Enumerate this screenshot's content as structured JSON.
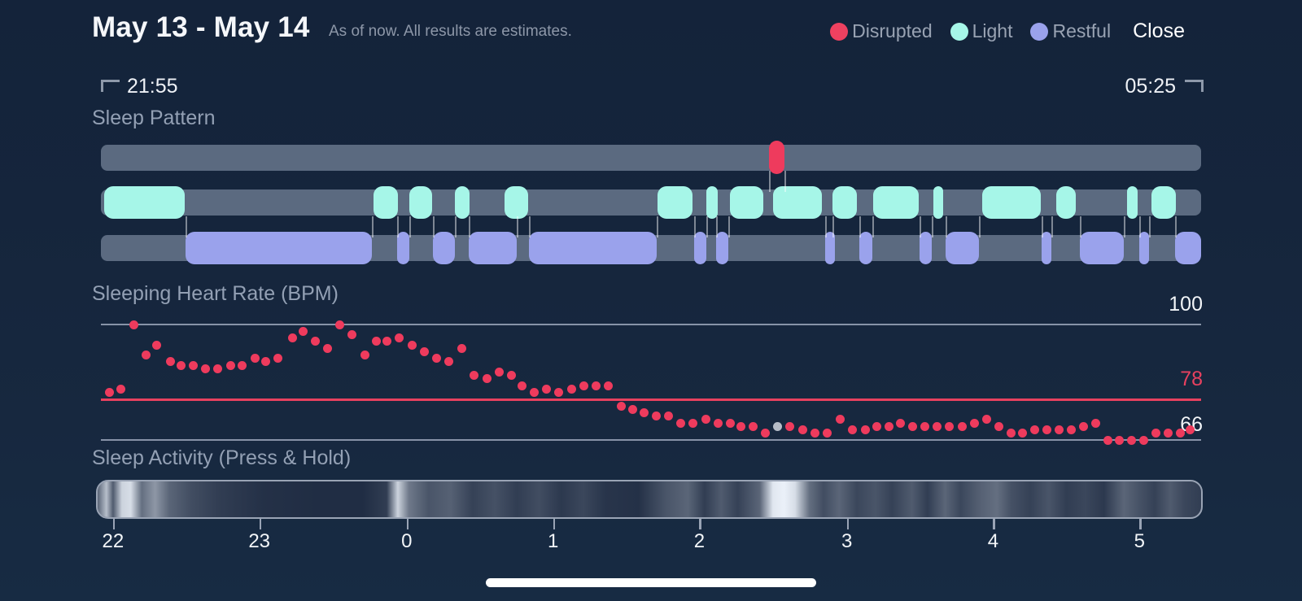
{
  "header": {
    "title": "May 13 - May 14",
    "subtitle": "As of now. All results are estimates.",
    "close_label": "Close",
    "legend": [
      {
        "label": "Disrupted",
        "color": "#ee4160"
      },
      {
        "label": "Light",
        "color": "#a6f6e8"
      },
      {
        "label": "Restful",
        "color": "#9aa2ec"
      }
    ]
  },
  "time_range": {
    "start": "21:55",
    "end": "05:25"
  },
  "sections": {
    "pattern_label": "Sleep Pattern",
    "heart_rate_label": "Sleeping Heart Rate (BPM)",
    "activity_label": "Sleep Activity (Press & Hold)"
  },
  "heart_rate_axis": {
    "max": "100",
    "avg": "78",
    "min": "66"
  },
  "x_axis": {
    "ticks": [
      {
        "label": "22",
        "f": 0.011
      },
      {
        "label": "23",
        "f": 0.144
      },
      {
        "label": "0",
        "f": 0.278
      },
      {
        "label": "1",
        "f": 0.411
      },
      {
        "label": "2",
        "f": 0.544
      },
      {
        "label": "3",
        "f": 0.678
      },
      {
        "label": "4",
        "f": 0.811
      },
      {
        "label": "5",
        "f": 0.944
      }
    ]
  },
  "colors": {
    "track": "#5b6a80",
    "disrupted": "#ee3b5d",
    "light": "#a6f6e8",
    "restful": "#9aa2ec",
    "gridline": "#8793a8",
    "avg_line": "#e8415f",
    "dot": "#ee3b5d",
    "dot_outlier": "#b6bdc8",
    "band": "235,241,249"
  },
  "chart_data": [
    {
      "type": "timeline",
      "title": "Sleep Pattern",
      "x_range": [
        "21:55",
        "05:25"
      ],
      "series": [
        {
          "name": "Disrupted",
          "segments": [
            [
              0.607,
              0.621
            ]
          ]
        },
        {
          "name": "Light",
          "segments": [
            [
              0.003,
              0.076
            ],
            [
              0.248,
              0.27
            ],
            [
              0.28,
              0.301
            ],
            [
              0.322,
              0.335
            ],
            [
              0.367,
              0.388
            ],
            [
              0.506,
              0.538
            ],
            [
              0.55,
              0.561
            ],
            [
              0.572,
              0.602
            ],
            [
              0.611,
              0.655
            ],
            [
              0.665,
              0.687
            ],
            [
              0.702,
              0.743
            ],
            [
              0.757,
              0.765
            ],
            [
              0.801,
              0.854
            ],
            [
              0.868,
              0.886
            ],
            [
              0.933,
              0.942
            ],
            [
              0.955,
              0.977
            ]
          ]
        },
        {
          "name": "Restful",
          "segments": [
            [
              0.077,
              0.246
            ],
            [
              0.269,
              0.28
            ],
            [
              0.302,
              0.322
            ],
            [
              0.334,
              0.378
            ],
            [
              0.389,
              0.505
            ],
            [
              0.539,
              0.55
            ],
            [
              0.559,
              0.57
            ],
            [
              0.658,
              0.665
            ],
            [
              0.689,
              0.701
            ],
            [
              0.744,
              0.755
            ],
            [
              0.768,
              0.798
            ],
            [
              0.855,
              0.864
            ],
            [
              0.89,
              0.93
            ],
            [
              0.944,
              0.953
            ],
            [
              0.976,
              1.0
            ]
          ]
        }
      ]
    },
    {
      "type": "scatter",
      "title": "Sleeping Heart Rate (BPM)",
      "ylim": [
        66,
        100
      ],
      "gridlines": [
        100,
        78,
        66
      ],
      "avg_value": 78,
      "outlier_index": 55,
      "points": [
        [
          0.008,
          80
        ],
        [
          0.018,
          81
        ],
        [
          0.03,
          100
        ],
        [
          0.041,
          91
        ],
        [
          0.051,
          94
        ],
        [
          0.063,
          89
        ],
        [
          0.073,
          88
        ],
        [
          0.084,
          88
        ],
        [
          0.095,
          87
        ],
        [
          0.106,
          87
        ],
        [
          0.118,
          88
        ],
        [
          0.128,
          88
        ],
        [
          0.14,
          90
        ],
        [
          0.15,
          89
        ],
        [
          0.161,
          90
        ],
        [
          0.174,
          96
        ],
        [
          0.184,
          98
        ],
        [
          0.195,
          95
        ],
        [
          0.206,
          93
        ],
        [
          0.217,
          100
        ],
        [
          0.228,
          97
        ],
        [
          0.24,
          91
        ],
        [
          0.25,
          95
        ],
        [
          0.26,
          95
        ],
        [
          0.271,
          96
        ],
        [
          0.283,
          94
        ],
        [
          0.294,
          92
        ],
        [
          0.305,
          90
        ],
        [
          0.316,
          89
        ],
        [
          0.328,
          93
        ],
        [
          0.339,
          85
        ],
        [
          0.351,
          84
        ],
        [
          0.362,
          86
        ],
        [
          0.373,
          85
        ],
        [
          0.383,
          82
        ],
        [
          0.394,
          80
        ],
        [
          0.405,
          81
        ],
        [
          0.416,
          80
        ],
        [
          0.428,
          81
        ],
        [
          0.439,
          82
        ],
        [
          0.45,
          82
        ],
        [
          0.461,
          82
        ],
        [
          0.473,
          76
        ],
        [
          0.483,
          75
        ],
        [
          0.494,
          74
        ],
        [
          0.505,
          73
        ],
        [
          0.516,
          73
        ],
        [
          0.527,
          71
        ],
        [
          0.538,
          71
        ],
        [
          0.55,
          72
        ],
        [
          0.561,
          71
        ],
        [
          0.572,
          71
        ],
        [
          0.582,
          70
        ],
        [
          0.593,
          70
        ],
        [
          0.604,
          68
        ],
        [
          0.615,
          70
        ],
        [
          0.626,
          70
        ],
        [
          0.638,
          69
        ],
        [
          0.649,
          68
        ],
        [
          0.66,
          68
        ],
        [
          0.672,
          72
        ],
        [
          0.683,
          69
        ],
        [
          0.695,
          69
        ],
        [
          0.705,
          70
        ],
        [
          0.716,
          70
        ],
        [
          0.727,
          71
        ],
        [
          0.738,
          70
        ],
        [
          0.749,
          70
        ],
        [
          0.76,
          70
        ],
        [
          0.771,
          70
        ],
        [
          0.783,
          70
        ],
        [
          0.794,
          71
        ],
        [
          0.805,
          72
        ],
        [
          0.816,
          70
        ],
        [
          0.827,
          68
        ],
        [
          0.838,
          68
        ],
        [
          0.849,
          69
        ],
        [
          0.86,
          69
        ],
        [
          0.871,
          69
        ],
        [
          0.882,
          69
        ],
        [
          0.893,
          70
        ],
        [
          0.904,
          71
        ],
        [
          0.915,
          66
        ],
        [
          0.926,
          66
        ],
        [
          0.937,
          66
        ],
        [
          0.948,
          66
        ],
        [
          0.959,
          68
        ],
        [
          0.97,
          68
        ],
        [
          0.981,
          68
        ],
        [
          0.99,
          69
        ]
      ]
    },
    {
      "type": "heatmap",
      "title": "Sleep Activity (Press & Hold)",
      "bands": [
        [
          0.0,
          0.3
        ],
        [
          0.008,
          0.75
        ],
        [
          0.014,
          0.25
        ],
        [
          0.022,
          0.85
        ],
        [
          0.03,
          0.9
        ],
        [
          0.04,
          0.35
        ],
        [
          0.052,
          0.55
        ],
        [
          0.065,
          0.3
        ],
        [
          0.085,
          0.18
        ],
        [
          0.11,
          0.1
        ],
        [
          0.15,
          0.04
        ],
        [
          0.2,
          0.02
        ],
        [
          0.24,
          0.02
        ],
        [
          0.262,
          0.1
        ],
        [
          0.272,
          0.85
        ],
        [
          0.282,
          0.4
        ],
        [
          0.3,
          0.22
        ],
        [
          0.32,
          0.28
        ],
        [
          0.34,
          0.12
        ],
        [
          0.36,
          0.2
        ],
        [
          0.38,
          0.1
        ],
        [
          0.4,
          0.18
        ],
        [
          0.42,
          0.08
        ],
        [
          0.44,
          0.15
        ],
        [
          0.46,
          0.06
        ],
        [
          0.49,
          0.04
        ],
        [
          0.515,
          0.22
        ],
        [
          0.535,
          0.3
        ],
        [
          0.55,
          0.1
        ],
        [
          0.565,
          0.25
        ],
        [
          0.58,
          0.12
        ],
        [
          0.6,
          0.3
        ],
        [
          0.612,
          0.95
        ],
        [
          0.622,
          1.0
        ],
        [
          0.632,
          0.9
        ],
        [
          0.645,
          0.35
        ],
        [
          0.658,
          0.18
        ],
        [
          0.672,
          0.3
        ],
        [
          0.688,
          0.15
        ],
        [
          0.705,
          0.22
        ],
        [
          0.72,
          0.12
        ],
        [
          0.738,
          0.25
        ],
        [
          0.752,
          0.1
        ],
        [
          0.768,
          0.3
        ],
        [
          0.782,
          0.15
        ],
        [
          0.8,
          0.28
        ],
        [
          0.815,
          0.35
        ],
        [
          0.828,
          0.2
        ],
        [
          0.845,
          0.12
        ],
        [
          0.862,
          0.22
        ],
        [
          0.878,
          0.1
        ],
        [
          0.895,
          0.15
        ],
        [
          0.912,
          0.08
        ],
        [
          0.93,
          0.3
        ],
        [
          0.945,
          0.2
        ],
        [
          0.958,
          0.12
        ],
        [
          0.972,
          0.25
        ],
        [
          0.985,
          0.15
        ],
        [
          1.0,
          0.1
        ]
      ]
    }
  ]
}
